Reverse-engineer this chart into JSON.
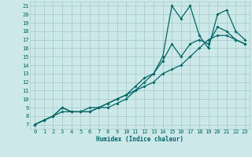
{
  "xlabel": "Humidex (Indice chaleur)",
  "bg_color": "#cce8e8",
  "grid_color": "#aacccc",
  "line_color": "#006666",
  "xlim": [
    -0.5,
    23.5
  ],
  "ylim": [
    6.5,
    21.5
  ],
  "xticks": [
    0,
    1,
    2,
    3,
    4,
    5,
    6,
    7,
    8,
    9,
    10,
    11,
    12,
    13,
    14,
    15,
    16,
    17,
    18,
    19,
    20,
    21,
    22,
    23
  ],
  "yticks": [
    7,
    8,
    9,
    10,
    11,
    12,
    13,
    14,
    15,
    16,
    17,
    18,
    19,
    20,
    21
  ],
  "line1_x": [
    0,
    1,
    2,
    3,
    4,
    5,
    6,
    7,
    8,
    9,
    10,
    11,
    12,
    13,
    14,
    15,
    16,
    17,
    18,
    19,
    20,
    21,
    22,
    23
  ],
  "line1_y": [
    7,
    7.5,
    8,
    8.5,
    8.5,
    8.5,
    9,
    9,
    9,
    9.5,
    10,
    11,
    11.5,
    12,
    13,
    13.5,
    14,
    15,
    16,
    17,
    17.5,
    17.5,
    17,
    16.5
  ],
  "line2_x": [
    0,
    1,
    2,
    3,
    4,
    5,
    6,
    7,
    8,
    9,
    10,
    11,
    12,
    13,
    14,
    15,
    16,
    17,
    18,
    19,
    20,
    21,
    22,
    23
  ],
  "line2_y": [
    7,
    7.5,
    8,
    9,
    8.5,
    8.5,
    8.5,
    9,
    9.5,
    10,
    10.5,
    11,
    12,
    13,
    14.5,
    16.5,
    15,
    16.5,
    17,
    16.5,
    18.5,
    18,
    17,
    16.5
  ],
  "line3_x": [
    0,
    1,
    2,
    3,
    4,
    5,
    6,
    7,
    8,
    9,
    10,
    11,
    12,
    13,
    14,
    15,
    16,
    17,
    18,
    19,
    20,
    21,
    22,
    23
  ],
  "line3_y": [
    7,
    7.5,
    8,
    9,
    8.5,
    8.5,
    8.5,
    9,
    9.5,
    10,
    10.5,
    11.5,
    12.5,
    13,
    15,
    21,
    19.5,
    21,
    17.5,
    16,
    20,
    20.5,
    18,
    17
  ]
}
